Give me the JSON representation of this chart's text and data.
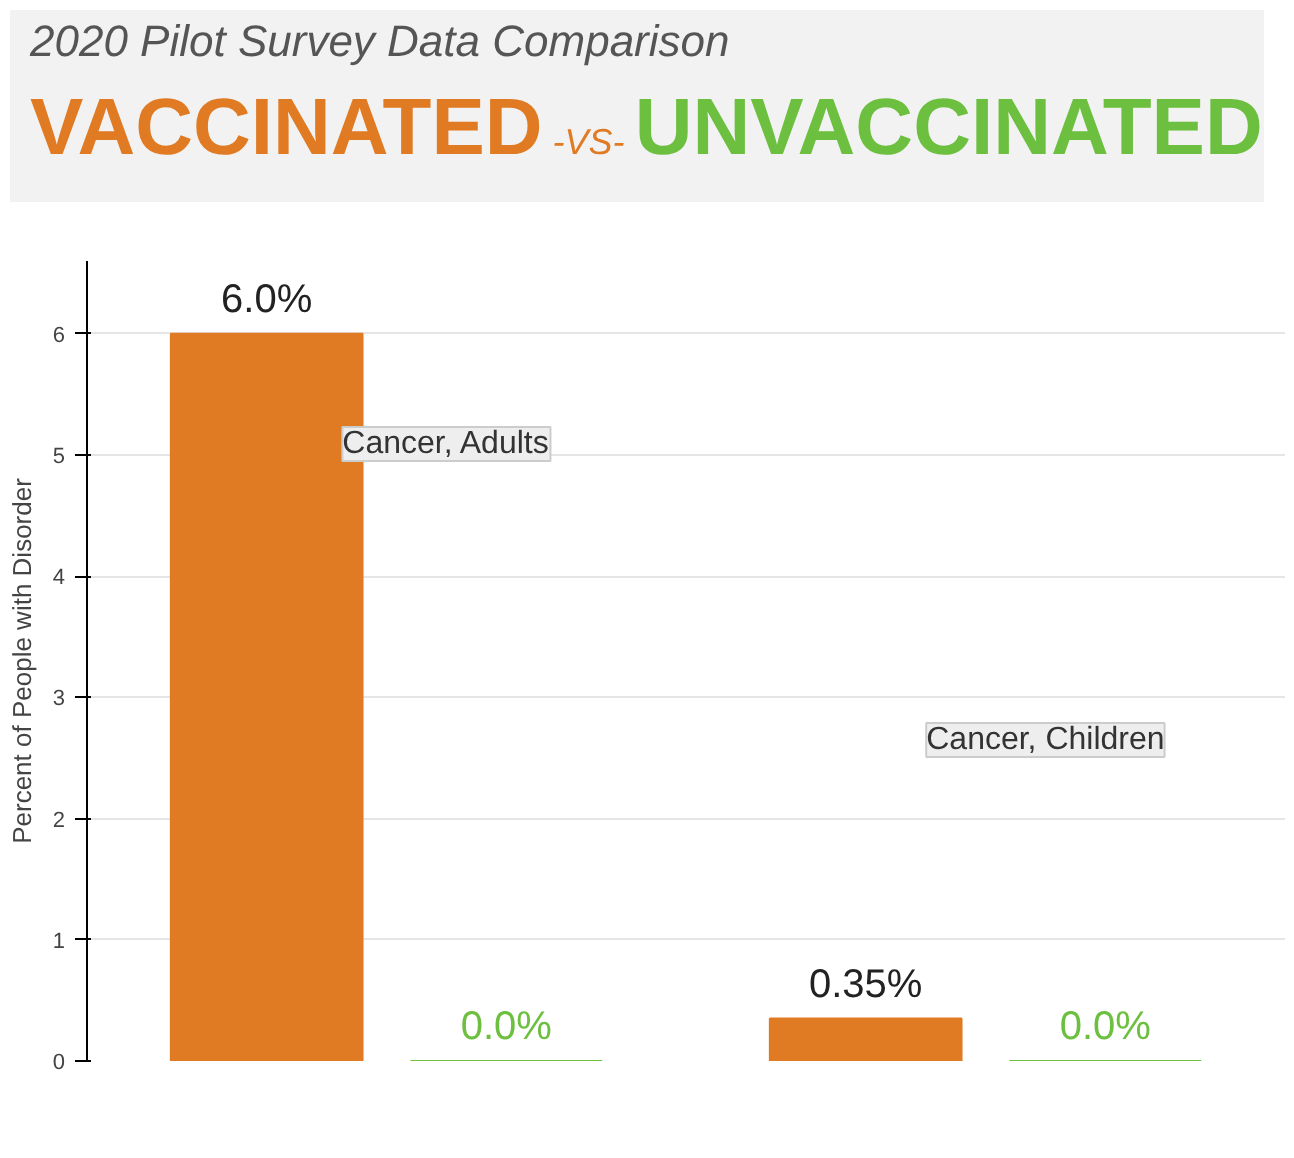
{
  "chart_data": {
    "type": "bar",
    "title": "2020 Pilot Survey Data Comparison",
    "annotations": [
      "-VS-"
    ],
    "ylabel": "Percent of People with Disorder",
    "categories": [
      "Cancer, Adults",
      "Cancer, Children"
    ],
    "series": [
      {
        "name": "VACCINATED",
        "color": "#e07b24",
        "values": [
          6.0,
          0.35
        ],
        "value_labels": [
          "6.0%",
          "0.35%"
        ]
      },
      {
        "name": "UNVACCINATED",
        "color": "#6cbf3f",
        "values": [
          0.0,
          0.0
        ],
        "value_labels": [
          "0.0%",
          "0.0%"
        ]
      }
    ],
    "ylim": [
      0,
      6.6
    ],
    "yticks": [
      0,
      1,
      2,
      3,
      4,
      5,
      6
    ],
    "grid": "y",
    "legend": "top"
  }
}
